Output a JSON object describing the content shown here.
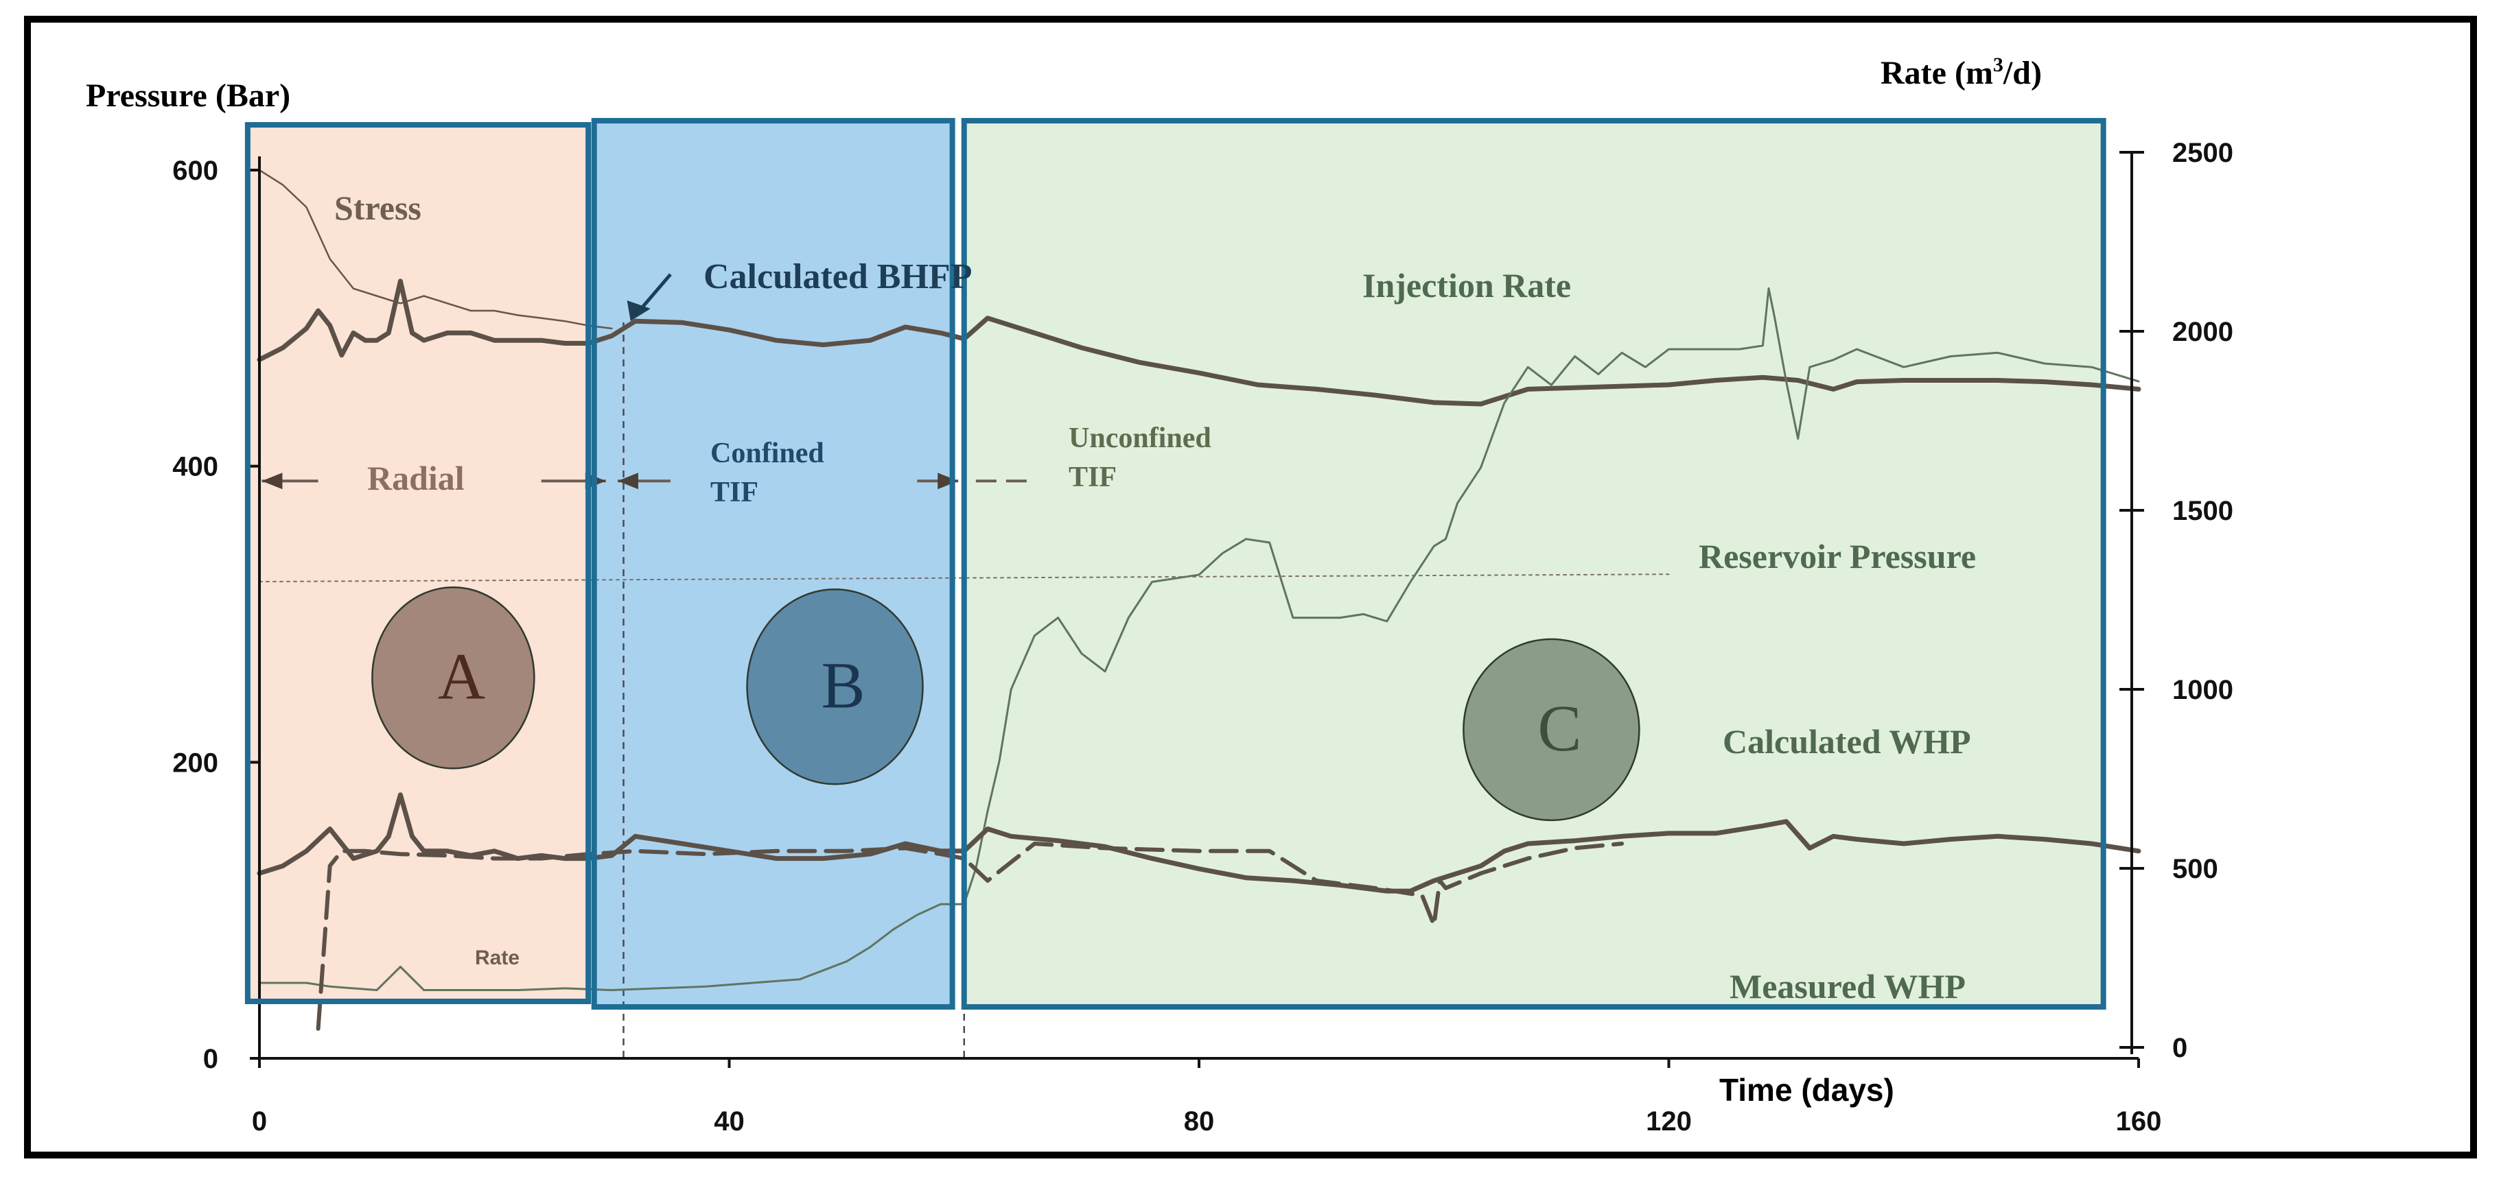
{
  "chart_data": {
    "type": "line",
    "title": "",
    "x_axis": {
      "label": "Time (days)",
      "min": 0,
      "max": 160,
      "ticks": [
        0,
        40,
        80,
        120,
        160
      ]
    },
    "y_axis_left": {
      "label": "Pressure (Bar)",
      "min": 0,
      "max": 600,
      "ticks": [
        0,
        200,
        400,
        600
      ]
    },
    "y_axis_right": {
      "label_base": "Rate (m",
      "label_sup": "3",
      "label_end": "/d)",
      "min": 0,
      "max": 2500,
      "ticks": [
        0,
        500,
        1000,
        1500,
        2000,
        2500
      ]
    },
    "regions": [
      {
        "id": "A",
        "label": "A",
        "x_start": -1,
        "x_end": 28,
        "color": "#fbe3d6",
        "border": "#1f6d94",
        "bubble_fill": "#a3877a",
        "bubble_text": "#4d2a20",
        "bubble_x": 16.5,
        "bubble_y": 257
      },
      {
        "id": "B",
        "label": "B",
        "x_start": 28.5,
        "x_end": 59,
        "color": "#a9d2ef",
        "border": "#1f6d94",
        "bubble_fill": "#5d8aa6",
        "bubble_text": "#1a3550",
        "bubble_x": 49,
        "bubble_y": 251
      },
      {
        "id": "C",
        "label": "C",
        "x_start": 60,
        "x_end": 157,
        "color": "#e0f0dd",
        "border": "#1f6d94",
        "bubble_fill": "#8b9c89",
        "bubble_text": "#3f4f3c",
        "bubble_x": 110,
        "bubble_y": 222
      }
    ],
    "flow_regimes": [
      {
        "label": "Radial",
        "x_start": 0,
        "x_end": 31
      },
      {
        "label_line1": "Confined",
        "label_line2": "TIF",
        "x_start": 31,
        "x_end": 60
      },
      {
        "label_line1": "Unconfined",
        "label_line2": "TIF",
        "x_start": 60,
        "x_end": 66
      }
    ],
    "series": [
      {
        "name": "Stress",
        "axis": "left",
        "stroke": "#6b5448",
        "width": 2.5,
        "dash": "",
        "x": [
          0,
          2,
          4,
          6,
          8,
          10,
          12,
          14,
          16,
          18,
          20,
          22,
          24,
          26,
          28,
          30
        ],
        "y": [
          600,
          590,
          575,
          540,
          520,
          515,
          510,
          515,
          510,
          505,
          505,
          502,
          500,
          498,
          495,
          493
        ]
      },
      {
        "name": "Calculated BHFP",
        "axis": "left",
        "stroke": "#5c5148",
        "width": 7,
        "dash": "",
        "x": [
          0,
          2,
          4,
          5,
          6,
          7,
          8,
          9,
          10,
          11,
          12,
          13,
          14,
          16,
          18,
          20,
          22,
          24,
          26,
          28,
          30,
          32,
          36,
          40,
          44,
          48,
          52,
          55,
          58,
          60,
          62,
          66,
          70,
          75,
          80,
          85,
          90,
          95,
          100,
          104,
          108,
          112,
          116,
          120,
          124,
          128,
          131,
          134,
          136,
          140,
          144,
          148,
          152,
          156,
          160
        ],
        "y": [
          472,
          480,
          493,
          505,
          495,
          475,
          490,
          485,
          485,
          490,
          525,
          490,
          485,
          490,
          490,
          485,
          485,
          485,
          483,
          483,
          488,
          498,
          497,
          492,
          485,
          482,
          485,
          494,
          490,
          486,
          500,
          490,
          480,
          470,
          463,
          455,
          452,
          448,
          443,
          442,
          452,
          453,
          454,
          455,
          458,
          460,
          458,
          452,
          457,
          458,
          458,
          458,
          457,
          455,
          452
        ]
      },
      {
        "name": "Injection Rate",
        "axis": "right",
        "stroke": "#5f7560",
        "width": 3,
        "dash": "",
        "x": [
          0,
          4,
          6,
          10,
          12,
          14,
          18,
          22,
          26,
          30,
          34,
          38,
          42,
          46,
          50,
          52,
          54,
          56,
          58,
          60,
          61,
          62,
          63,
          64,
          66,
          68,
          70,
          72,
          74,
          76,
          78,
          80,
          82,
          84,
          86,
          88,
          90,
          92,
          94,
          96,
          98,
          100,
          101,
          102,
          104,
          106,
          108,
          110,
          112,
          114,
          116,
          118,
          120,
          124,
          126,
          128,
          128.5,
          129,
          130,
          131,
          132,
          134,
          136,
          140,
          144,
          148,
          152,
          156,
          160
        ],
        "y": [
          180,
          180,
          170,
          160,
          225,
          160,
          160,
          160,
          165,
          160,
          165,
          170,
          180,
          190,
          240,
          280,
          330,
          370,
          400,
          400,
          500,
          660,
          800,
          1000,
          1150,
          1200,
          1100,
          1050,
          1200,
          1300,
          1310,
          1320,
          1380,
          1420,
          1410,
          1200,
          1200,
          1200,
          1210,
          1190,
          1300,
          1400,
          1420,
          1520,
          1620,
          1800,
          1900,
          1850,
          1930,
          1880,
          1940,
          1900,
          1950,
          1950,
          1950,
          1960,
          2120,
          2040,
          1860,
          1700,
          1900,
          1920,
          1950,
          1900,
          1930,
          1940,
          1910,
          1900,
          1860
        ]
      },
      {
        "name": "Calculated WHP",
        "axis": "left",
        "stroke": "#5c5148",
        "width": 7,
        "dash": "",
        "x": [
          0,
          2,
          4,
          6,
          8,
          10,
          11,
          12,
          13,
          14,
          16,
          18,
          20,
          22,
          24,
          26,
          28,
          30,
          32,
          36,
          40,
          44,
          48,
          52,
          55,
          58,
          60,
          62,
          64,
          68,
          72,
          76,
          80,
          84,
          88,
          92,
          96,
          98,
          100,
          102,
          104,
          106,
          108,
          112,
          116,
          120,
          124,
          128,
          130,
          132,
          134,
          136,
          140,
          144,
          148,
          152,
          156,
          160
        ],
        "y": [
          125,
          130,
          140,
          155,
          135,
          140,
          150,
          178,
          150,
          140,
          140,
          137,
          140,
          135,
          137,
          135,
          135,
          137,
          150,
          145,
          140,
          135,
          135,
          138,
          145,
          140,
          140,
          155,
          150,
          147,
          143,
          135,
          128,
          122,
          120,
          117,
          113,
          113,
          120,
          125,
          130,
          140,
          145,
          147,
          150,
          152,
          152,
          157,
          160,
          142,
          150,
          148,
          145,
          148,
          150,
          148,
          145,
          140
        ]
      },
      {
        "name": "Measured WHP",
        "axis": "left",
        "stroke": "#5c5148",
        "width": 6,
        "dash": "38 16",
        "x": [
          5,
          6,
          7,
          9,
          12,
          16,
          20,
          24,
          28,
          32,
          38,
          44,
          50,
          55,
          58,
          60,
          62,
          66,
          72,
          80,
          86,
          90,
          95,
          99,
          100,
          100.5,
          101,
          104,
          108,
          112,
          116
        ],
        "y": [
          20,
          130,
          140,
          140,
          138,
          137,
          135,
          135,
          138,
          140,
          138,
          140,
          140,
          142,
          138,
          135,
          120,
          145,
          142,
          140,
          140,
          120,
          115,
          110,
          90,
          120,
          115,
          125,
          135,
          142,
          145
        ]
      },
      {
        "name": "Reservoir Pressure",
        "axis": "left",
        "stroke": "#7a7065",
        "width": 2,
        "dash": "4 6",
        "x": [
          0,
          120
        ],
        "y": [
          322,
          327
        ]
      }
    ],
    "series_labels": {
      "stress": "Stress",
      "calculated_bhfp": "Calculated BHFP",
      "injection_rate": "Injection Rate",
      "reservoir_pressure": "Reservoir Pressure",
      "calculated_whp": "Calculated WHP",
      "measured_whp": "Measured WHP",
      "rate_small": "Rate"
    },
    "legend_position": "inline"
  }
}
